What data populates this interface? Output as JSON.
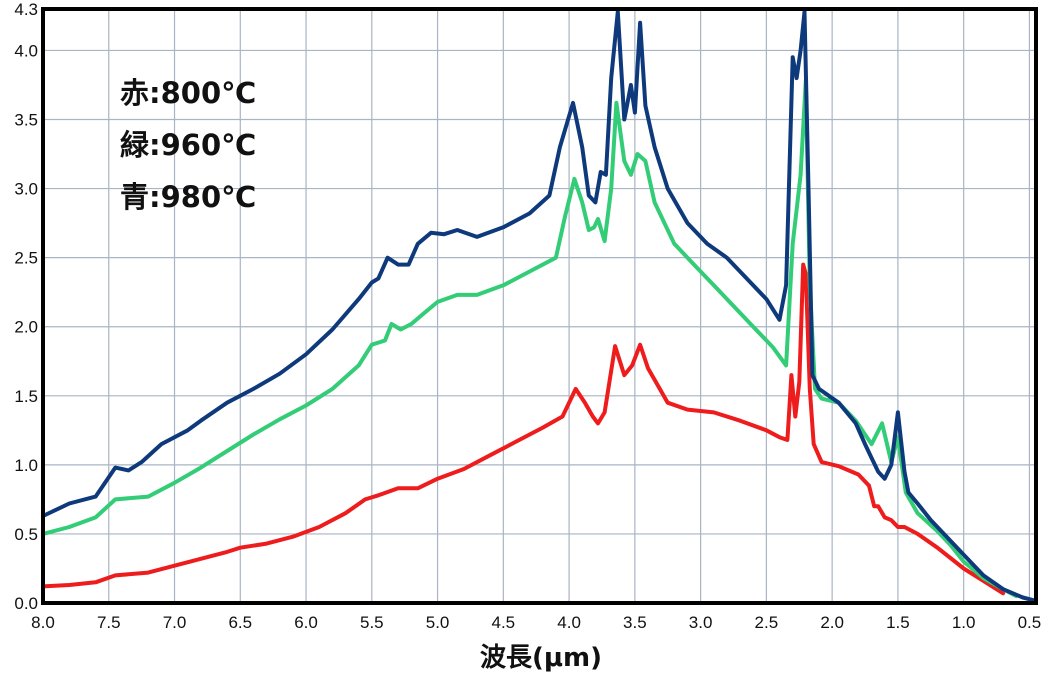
{
  "chart_data": {
    "type": "line",
    "xlabel": "波長(μm)",
    "ylabel": "",
    "title": "",
    "x_reversed": true,
    "xlim": [
      8.0,
      0.45
    ],
    "ylim": [
      0.0,
      4.3
    ],
    "grid": true,
    "xticks": [
      "8.0",
      "7.5",
      "7.0",
      "6.5",
      "6.0",
      "5.5",
      "5.0",
      "4.5",
      "4.0",
      "3.5",
      "3.0",
      "2.5",
      "2.0",
      "1.5",
      "1.0",
      "0.5"
    ],
    "yticks": [
      "0.0",
      "0.5",
      "1.0",
      "1.5",
      "2.0",
      "2.5",
      "3.0",
      "3.5",
      "4.0",
      "4.3"
    ],
    "legend": [
      "赤:800℃",
      "緑:960℃",
      "青:980℃"
    ],
    "series": [
      {
        "name": "赤:800℃",
        "color": "#ee1c1c",
        "points": [
          [
            8.0,
            0.12
          ],
          [
            7.8,
            0.13
          ],
          [
            7.6,
            0.15
          ],
          [
            7.45,
            0.2
          ],
          [
            7.2,
            0.22
          ],
          [
            7.0,
            0.27
          ],
          [
            6.8,
            0.32
          ],
          [
            6.6,
            0.37
          ],
          [
            6.5,
            0.4
          ],
          [
            6.3,
            0.43
          ],
          [
            6.1,
            0.48
          ],
          [
            5.9,
            0.55
          ],
          [
            5.7,
            0.65
          ],
          [
            5.55,
            0.75
          ],
          [
            5.45,
            0.78
          ],
          [
            5.3,
            0.83
          ],
          [
            5.15,
            0.83
          ],
          [
            5.0,
            0.9
          ],
          [
            4.8,
            0.97
          ],
          [
            4.6,
            1.07
          ],
          [
            4.4,
            1.17
          ],
          [
            4.2,
            1.27
          ],
          [
            4.05,
            1.35
          ],
          [
            3.95,
            1.55
          ],
          [
            3.88,
            1.45
          ],
          [
            3.82,
            1.35
          ],
          [
            3.78,
            1.3
          ],
          [
            3.73,
            1.38
          ],
          [
            3.65,
            1.86
          ],
          [
            3.58,
            1.65
          ],
          [
            3.52,
            1.72
          ],
          [
            3.46,
            1.87
          ],
          [
            3.4,
            1.7
          ],
          [
            3.25,
            1.45
          ],
          [
            3.1,
            1.4
          ],
          [
            2.9,
            1.38
          ],
          [
            2.7,
            1.32
          ],
          [
            2.5,
            1.25
          ],
          [
            2.4,
            1.2
          ],
          [
            2.34,
            1.18
          ],
          [
            2.31,
            1.65
          ],
          [
            2.28,
            1.35
          ],
          [
            2.25,
            1.6
          ],
          [
            2.22,
            2.45
          ],
          [
            2.2,
            2.38
          ],
          [
            2.17,
            1.55
          ],
          [
            2.14,
            1.15
          ],
          [
            2.08,
            1.02
          ],
          [
            1.95,
            0.99
          ],
          [
            1.8,
            0.93
          ],
          [
            1.72,
            0.85
          ],
          [
            1.68,
            0.7
          ],
          [
            1.65,
            0.7
          ],
          [
            1.6,
            0.62
          ],
          [
            1.55,
            0.6
          ],
          [
            1.5,
            0.55
          ],
          [
            1.45,
            0.55
          ],
          [
            1.35,
            0.5
          ],
          [
            1.2,
            0.4
          ],
          [
            1.0,
            0.25
          ],
          [
            0.8,
            0.13
          ],
          [
            0.7,
            0.07
          ]
        ]
      },
      {
        "name": "緑:960℃",
        "color": "#33cc77",
        "points": [
          [
            8.0,
            0.5
          ],
          [
            7.8,
            0.55
          ],
          [
            7.6,
            0.62
          ],
          [
            7.45,
            0.75
          ],
          [
            7.2,
            0.77
          ],
          [
            7.0,
            0.87
          ],
          [
            6.8,
            0.98
          ],
          [
            6.6,
            1.1
          ],
          [
            6.4,
            1.22
          ],
          [
            6.2,
            1.33
          ],
          [
            6.0,
            1.43
          ],
          [
            5.8,
            1.55
          ],
          [
            5.6,
            1.72
          ],
          [
            5.5,
            1.87
          ],
          [
            5.4,
            1.9
          ],
          [
            5.35,
            2.02
          ],
          [
            5.28,
            1.98
          ],
          [
            5.2,
            2.02
          ],
          [
            5.1,
            2.1
          ],
          [
            5.0,
            2.18
          ],
          [
            4.85,
            2.23
          ],
          [
            4.7,
            2.23
          ],
          [
            4.5,
            2.3
          ],
          [
            4.3,
            2.4
          ],
          [
            4.1,
            2.5
          ],
          [
            4.03,
            2.8
          ],
          [
            3.96,
            3.07
          ],
          [
            3.9,
            2.9
          ],
          [
            3.85,
            2.7
          ],
          [
            3.81,
            2.72
          ],
          [
            3.78,
            2.78
          ],
          [
            3.73,
            2.62
          ],
          [
            3.68,
            3.0
          ],
          [
            3.64,
            3.62
          ],
          [
            3.58,
            3.2
          ],
          [
            3.53,
            3.1
          ],
          [
            3.48,
            3.25
          ],
          [
            3.42,
            3.2
          ],
          [
            3.35,
            2.9
          ],
          [
            3.2,
            2.6
          ],
          [
            3.05,
            2.45
          ],
          [
            2.9,
            2.3
          ],
          [
            2.75,
            2.15
          ],
          [
            2.6,
            2.0
          ],
          [
            2.45,
            1.85
          ],
          [
            2.35,
            1.72
          ],
          [
            2.3,
            2.6
          ],
          [
            2.24,
            3.1
          ],
          [
            2.2,
            3.78
          ],
          [
            2.17,
            2.3
          ],
          [
            2.13,
            1.55
          ],
          [
            2.08,
            1.48
          ],
          [
            1.95,
            1.45
          ],
          [
            1.82,
            1.32
          ],
          [
            1.75,
            1.22
          ],
          [
            1.7,
            1.15
          ],
          [
            1.62,
            1.3
          ],
          [
            1.55,
            1.02
          ],
          [
            1.5,
            1.2
          ],
          [
            1.44,
            0.8
          ],
          [
            1.35,
            0.65
          ],
          [
            1.2,
            0.52
          ],
          [
            1.1,
            0.42
          ],
          [
            1.0,
            0.3
          ],
          [
            0.85,
            0.18
          ],
          [
            0.7,
            0.1
          ],
          [
            0.6,
            0.05
          ]
        ]
      },
      {
        "name": "青:980℃",
        "color": "#0e3a7c",
        "points": [
          [
            8.0,
            0.63
          ],
          [
            7.8,
            0.72
          ],
          [
            7.6,
            0.77
          ],
          [
            7.45,
            0.98
          ],
          [
            7.35,
            0.96
          ],
          [
            7.25,
            1.02
          ],
          [
            7.1,
            1.15
          ],
          [
            6.9,
            1.25
          ],
          [
            6.8,
            1.32
          ],
          [
            6.6,
            1.45
          ],
          [
            6.4,
            1.55
          ],
          [
            6.2,
            1.66
          ],
          [
            6.0,
            1.8
          ],
          [
            5.8,
            1.98
          ],
          [
            5.6,
            2.2
          ],
          [
            5.5,
            2.32
          ],
          [
            5.45,
            2.35
          ],
          [
            5.38,
            2.5
          ],
          [
            5.3,
            2.45
          ],
          [
            5.22,
            2.45
          ],
          [
            5.15,
            2.6
          ],
          [
            5.05,
            2.68
          ],
          [
            4.95,
            2.67
          ],
          [
            4.85,
            2.7
          ],
          [
            4.7,
            2.65
          ],
          [
            4.5,
            2.72
          ],
          [
            4.3,
            2.82
          ],
          [
            4.15,
            2.95
          ],
          [
            4.07,
            3.3
          ],
          [
            3.97,
            3.62
          ],
          [
            3.9,
            3.3
          ],
          [
            3.85,
            2.95
          ],
          [
            3.8,
            2.9
          ],
          [
            3.76,
            3.12
          ],
          [
            3.72,
            3.1
          ],
          [
            3.68,
            3.8
          ],
          [
            3.63,
            4.28
          ],
          [
            3.58,
            3.5
          ],
          [
            3.53,
            3.75
          ],
          [
            3.5,
            3.55
          ],
          [
            3.46,
            4.2
          ],
          [
            3.42,
            3.6
          ],
          [
            3.35,
            3.3
          ],
          [
            3.25,
            3.0
          ],
          [
            3.1,
            2.75
          ],
          [
            2.95,
            2.6
          ],
          [
            2.8,
            2.5
          ],
          [
            2.65,
            2.35
          ],
          [
            2.5,
            2.2
          ],
          [
            2.4,
            2.05
          ],
          [
            2.35,
            2.3
          ],
          [
            2.3,
            3.95
          ],
          [
            2.27,
            3.8
          ],
          [
            2.24,
            4.0
          ],
          [
            2.21,
            4.28
          ],
          [
            2.18,
            3.0
          ],
          [
            2.15,
            1.65
          ],
          [
            2.1,
            1.55
          ],
          [
            1.95,
            1.45
          ],
          [
            1.82,
            1.3
          ],
          [
            1.75,
            1.15
          ],
          [
            1.7,
            1.05
          ],
          [
            1.65,
            0.95
          ],
          [
            1.6,
            0.9
          ],
          [
            1.55,
            1.0
          ],
          [
            1.5,
            1.38
          ],
          [
            1.45,
            0.95
          ],
          [
            1.42,
            0.8
          ],
          [
            1.35,
            0.72
          ],
          [
            1.25,
            0.6
          ],
          [
            1.15,
            0.5
          ],
          [
            1.0,
            0.35
          ],
          [
            0.85,
            0.2
          ],
          [
            0.7,
            0.1
          ],
          [
            0.55,
            0.04
          ],
          [
            0.47,
            0.02
          ]
        ]
      }
    ]
  }
}
